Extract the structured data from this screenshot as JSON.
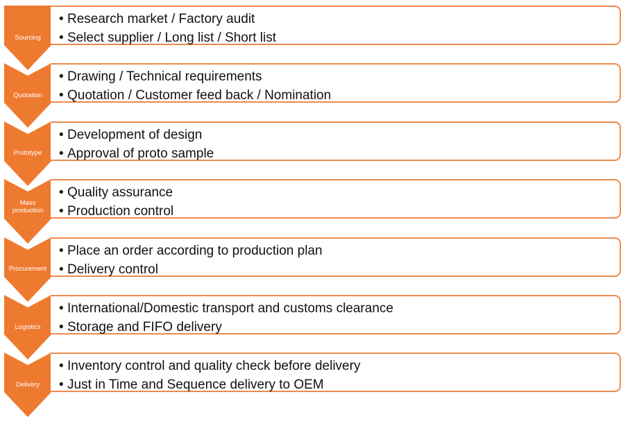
{
  "colors": {
    "accent": "#ee7a2f",
    "border": "#ee8a4c",
    "text": "#111111"
  },
  "steps": [
    {
      "label": "Sourcing",
      "items": [
        "Research market / Factory audit",
        "Select supplier / Long list / Short list"
      ]
    },
    {
      "label": "Quotation",
      "items": [
        "Drawing / Technical requirements",
        "Quotation / Customer feed back / Nomination"
      ]
    },
    {
      "label": "Prototype",
      "items": [
        "Development of design",
        "Approval of proto sample"
      ]
    },
    {
      "label": "Mass production",
      "items": [
        "Quality assurance",
        "Production control"
      ]
    },
    {
      "label": "Procurement",
      "items": [
        "Place an order according to production plan",
        "Delivery control"
      ]
    },
    {
      "label": "Logistics",
      "items": [
        "International/Domestic transport and customs clearance",
        "Storage and FIFO delivery"
      ]
    },
    {
      "label": "Delivery",
      "items": [
        "Inventory control and quality check before delivery",
        "Just in Time and Sequence delivery to OEM"
      ]
    }
  ]
}
